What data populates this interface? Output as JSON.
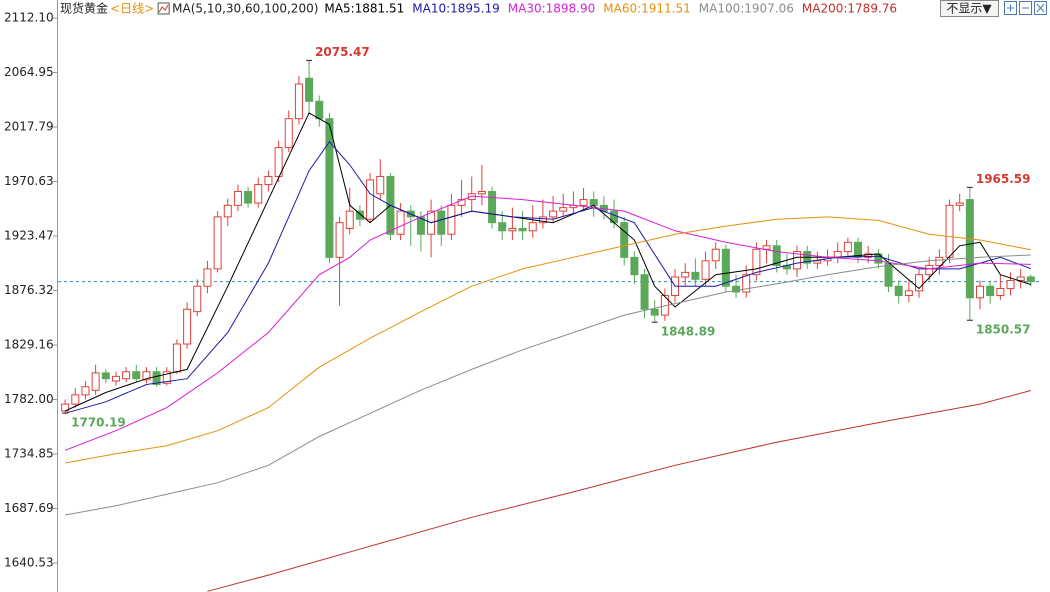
{
  "chart_data": {
    "type": "candlestick",
    "title": "现货黄金",
    "period": "<日线>",
    "ma_label": "MA(5,10,30,60,100,200)",
    "button": "不显示▼",
    "ylim": [
      1615.4,
      2127.7
    ],
    "yticks": [
      {
        "value": 2112.1,
        "label": "2112.10"
      },
      2064.95,
      2017.79,
      1970.63,
      1923.47,
      1876.32,
      1829.16,
      {
        "value": 1782,
        "label": "1782.00"
      },
      1734.85,
      1687.69,
      1640.53
    ],
    "xlim": [
      -0.7,
      95.9
    ],
    "up_color": "#e0413a",
    "down_color": "#5ba85b",
    "open": [
      1772,
      1778,
      1786,
      1790,
      1805,
      1798,
      1800,
      1806,
      1799,
      1806,
      1796,
      1806,
      1830,
      1858,
      1880,
      1895,
      1940,
      1950,
      1962,
      1952,
      1968,
      1975,
      2000,
      2025,
      2060,
      2040,
      2025,
      1905,
      1930,
      1945,
      1938,
      1960,
      1975,
      1925,
      1945,
      1940,
      1925,
      1945,
      1925,
      1950,
      1955,
      1960,
      1962,
      1935,
      1928,
      1930,
      1928,
      1935,
      1940,
      1945,
      1948,
      1950,
      1955,
      1950,
      1945,
      1935,
      1905,
      1890,
      1860,
      1855,
      1872,
      1888,
      1892,
      1886,
      1902,
      1912,
      1880,
      1875,
      1890,
      1912,
      1915,
      1898,
      1895,
      1910,
      1900,
      1902,
      1905,
      1910,
      1918,
      1905,
      1908,
      1900,
      1880,
      1872,
      1876,
      1890,
      1898,
      1905,
      1950,
      1955,
      1870,
      1880,
      1872,
      1878,
      1885,
      1888
    ],
    "high": [
      1782,
      1792,
      1798,
      1812,
      1808,
      1806,
      1810,
      1812,
      1810,
      1810,
      1810,
      1834,
      1866,
      1886,
      1902,
      1945,
      1956,
      1968,
      1966,
      1974,
      1980,
      2006,
      2032,
      2062,
      2075.47,
      2045,
      2030,
      1940,
      1965,
      1950,
      1978,
      1990,
      1978,
      1952,
      1950,
      1945,
      1955,
      1950,
      1960,
      1972,
      1975,
      1985,
      1966,
      1945,
      1948,
      1945,
      1950,
      1955,
      1958,
      1960,
      1962,
      1965,
      1962,
      1958,
      1955,
      1940,
      1910,
      1895,
      1868,
      1878,
      1895,
      1900,
      1904,
      1910,
      1918,
      1916,
      1890,
      1898,
      1918,
      1920,
      1920,
      1908,
      1915,
      1915,
      1910,
      1912,
      1918,
      1922,
      1922,
      1915,
      1912,
      1908,
      1885,
      1885,
      1895,
      1905,
      1912,
      1955,
      1960,
      1965.59,
      1885,
      1885,
      1890,
      1892,
      1895,
      1890
    ],
    "low": [
      1770.19,
      1775,
      1782,
      1786,
      1796,
      1794,
      1797,
      1797,
      1796,
      1793,
      1794,
      1804,
      1826,
      1854,
      1874,
      1892,
      1932,
      1945,
      1948,
      1948,
      1962,
      1970,
      1996,
      2020,
      2030,
      2018,
      1900,
      1863,
      1925,
      1932,
      1935,
      1955,
      1920,
      1920,
      1915,
      1910,
      1905,
      1915,
      1920,
      1940,
      1945,
      1950,
      1930,
      1920,
      1920,
      1920,
      1922,
      1930,
      1935,
      1940,
      1942,
      1945,
      1940,
      1938,
      1930,
      1898,
      1882,
      1852,
      1848.89,
      1850,
      1866,
      1880,
      1880,
      1880,
      1895,
      1875,
      1870,
      1870,
      1885,
      1900,
      1892,
      1890,
      1888,
      1895,
      1895,
      1898,
      1900,
      1905,
      1900,
      1900,
      1895,
      1875,
      1865,
      1866,
      1870,
      1885,
      1890,
      1900,
      1945,
      1850.57,
      1860,
      1865,
      1868,
      1872,
      1878,
      1880
    ],
    "close": [
      1778,
      1786,
      1793,
      1805,
      1800,
      1802,
      1806,
      1800,
      1806,
      1795,
      1806,
      1830,
      1860,
      1880,
      1895,
      1940,
      1950,
      1962,
      1952,
      1968,
      1975,
      2000,
      2025,
      2055,
      2040,
      2025,
      1905,
      1935,
      1945,
      1938,
      1972,
      1975,
      1925,
      1945,
      1940,
      1925,
      1945,
      1925,
      1950,
      1955,
      1960,
      1962,
      1935,
      1928,
      1930,
      1928,
      1935,
      1940,
      1945,
      1948,
      1950,
      1955,
      1950,
      1945,
      1935,
      1905,
      1890,
      1860,
      1855,
      1872,
      1888,
      1892,
      1886,
      1902,
      1912,
      1880,
      1875,
      1890,
      1912,
      1915,
      1898,
      1895,
      1910,
      1900,
      1902,
      1905,
      1910,
      1918,
      1905,
      1908,
      1900,
      1880,
      1872,
      1876,
      1890,
      1898,
      1905,
      1950,
      1952,
      1870,
      1880,
      1872,
      1878,
      1885,
      1888,
      1884
    ],
    "series": [
      {
        "name": "MA5:1881.51",
        "color": "#000000",
        "x": [
          0,
          4,
          8,
          12,
          16,
          20,
          24,
          26,
          28,
          30,
          32,
          36,
          40,
          44,
          48,
          52,
          56,
          58,
          60,
          64,
          68,
          72,
          76,
          80,
          84,
          88,
          90,
          92,
          95
        ],
        "values": [
          1772,
          1788,
          1800,
          1808,
          1880,
          1955,
          2030,
          2020,
          1950,
          1935,
          1950,
          1935,
          1945,
          1940,
          1935,
          1950,
          1920,
          1880,
          1862,
          1890,
          1895,
          1905,
          1905,
          1908,
          1878,
          1915,
          1918,
          1890,
          1881.51
        ]
      },
      {
        "name": "MA10:1895.19",
        "color": "#1a1aa6",
        "x": [
          0,
          4,
          8,
          12,
          16,
          20,
          24,
          26,
          28,
          30,
          32,
          36,
          40,
          44,
          48,
          52,
          56,
          60,
          64,
          68,
          72,
          76,
          80,
          84,
          88,
          92,
          95
        ],
        "values": [
          1770,
          1780,
          1795,
          1800,
          1840,
          1900,
          1980,
          2005,
          1985,
          1960,
          1950,
          1935,
          1945,
          1940,
          1938,
          1948,
          1935,
          1880,
          1880,
          1892,
          1900,
          1905,
          1906,
          1895,
          1895,
          1905,
          1895.19
        ]
      },
      {
        "name": "MA30:1898.90",
        "color": "#d81ed8",
        "x": [
          0,
          5,
          10,
          15,
          20,
          25,
          28,
          30,
          35,
          40,
          45,
          50,
          55,
          60,
          65,
          70,
          75,
          80,
          85,
          90,
          95
        ],
        "values": [
          1738,
          1755,
          1775,
          1805,
          1840,
          1890,
          1905,
          1920,
          1940,
          1958,
          1955,
          1950,
          1945,
          1928,
          1918,
          1910,
          1905,
          1902,
          1895,
          1900,
          1898.9
        ]
      },
      {
        "name": "MA60:1911.51",
        "color": "#e8900c",
        "x": [
          0,
          5,
          10,
          15,
          20,
          25,
          28,
          30,
          35,
          40,
          45,
          50,
          55,
          60,
          65,
          70,
          75,
          80,
          85,
          90,
          95
        ],
        "values": [
          1727,
          1735,
          1742,
          1755,
          1775,
          1810,
          1825,
          1835,
          1858,
          1880,
          1895,
          1905,
          1915,
          1925,
          1932,
          1938,
          1940,
          1937,
          1925,
          1920,
          1911.51
        ]
      },
      {
        "name": "MA100:1907.06",
        "color": "#8c8c8c",
        "x": [
          0,
          5,
          10,
          15,
          20,
          25,
          28,
          30,
          35,
          40,
          45,
          50,
          55,
          60,
          65,
          70,
          75,
          80,
          85,
          90,
          95
        ],
        "values": [
          1682,
          1690,
          1700,
          1710,
          1725,
          1750,
          1762,
          1770,
          1790,
          1808,
          1825,
          1840,
          1855,
          1865,
          1875,
          1882,
          1890,
          1897,
          1902,
          1905,
          1907.06
        ]
      },
      {
        "name": "MA200:1789.76",
        "color": "#c0302a",
        "x": [
          14,
          20,
          30,
          40,
          50,
          60,
          70,
          80,
          90,
          95
        ],
        "values": [
          1616,
          1630,
          1655,
          1680,
          1702,
          1725,
          1745,
          1762,
          1778,
          1789.76
        ]
      }
    ],
    "reference_line": 1884,
    "reference_color": "#2a8fb0",
    "annotations": [
      {
        "label": "2075.47",
        "index": 24,
        "value": 2075.47,
        "color": "#d23b33",
        "side": "high"
      },
      {
        "label": "1770.19",
        "index": 0,
        "value": 1770.19,
        "color": "#5ba85b",
        "side": "low"
      },
      {
        "label": "1848.89",
        "index": 58,
        "value": 1848.89,
        "color": "#5ba85b",
        "side": "low"
      },
      {
        "label": "1965.59",
        "index": 89,
        "value": 1965.59,
        "color": "#d23b33",
        "side": "high"
      },
      {
        "label": "1850.57",
        "index": 89,
        "value": 1850.57,
        "color": "#5ba85b",
        "side": "low"
      }
    ]
  }
}
